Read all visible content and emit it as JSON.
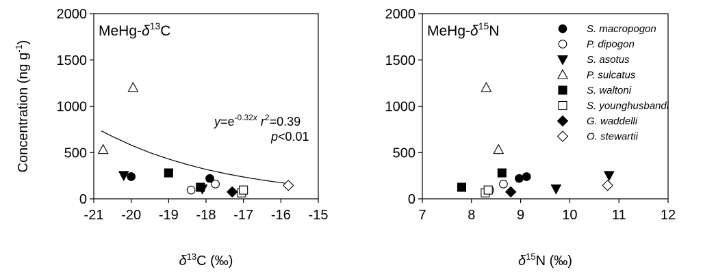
{
  "chart_data": [
    {
      "type": "scatter",
      "panel_label": {
        "prefix": "MeHg-",
        "delta": "δ",
        "sup": "13",
        "element": "C"
      },
      "xlabel": {
        "delta": "δ",
        "sup": "13",
        "element": "C",
        "unit": " (‰)"
      },
      "ylabel": {
        "main": "Concentration (ng g",
        "sup": "-1",
        "close": ")"
      },
      "xlim": [
        -21,
        -15
      ],
      "ylim": [
        0,
        2000
      ],
      "xticks": [
        "-21",
        "-20",
        "-19",
        "-18",
        "-17",
        "-16",
        "-15"
      ],
      "yticks": [
        "0",
        "500",
        "1000",
        "1500",
        "2000"
      ],
      "series": [
        {
          "name": "S.  macropogon",
          "marker": "circle-filled",
          "points": [
            {
              "x": -20.0,
              "y": 240
            },
            {
              "x": -17.9,
              "y": 220
            }
          ]
        },
        {
          "name": "P. dipogon",
          "marker": "circle-open",
          "points": [
            {
              "x": -18.4,
              "y": 95
            },
            {
              "x": -17.75,
              "y": 160
            }
          ]
        },
        {
          "name": "S. asotus",
          "marker": "triangle-down-filled",
          "points": [
            {
              "x": -20.2,
              "y": 255
            },
            {
              "x": -18.1,
              "y": 110
            }
          ]
        },
        {
          "name": "P. sulcatus",
          "marker": "triangle-up-open",
          "points": [
            {
              "x": -20.75,
              "y": 530
            },
            {
              "x": -19.95,
              "y": 1200
            }
          ]
        },
        {
          "name": "S. waltoni",
          "marker": "square-filled",
          "points": [
            {
              "x": -19.0,
              "y": 280
            },
            {
              "x": -18.15,
              "y": 125
            }
          ]
        },
        {
          "name": "S. younghusbandi",
          "marker": "square-open",
          "points": [
            {
              "x": -17.05,
              "y": 65
            },
            {
              "x": -17.0,
              "y": 95
            }
          ]
        },
        {
          "name": "G. waddelli",
          "marker": "diamond-filled",
          "points": [
            {
              "x": -17.3,
              "y": 75
            }
          ]
        },
        {
          "name": "O. stewartii",
          "marker": "diamond-open",
          "points": [
            {
              "x": -15.8,
              "y": 145
            }
          ]
        }
      ],
      "fit_curve": {
        "x": [
          -20.8,
          -20.5,
          -20.0,
          -19.5,
          -19.0,
          -18.5,
          -18.0,
          -17.5,
          -17.0,
          -16.5,
          -16.0,
          -15.8
        ],
        "y": [
          735,
          673,
          580,
          499,
          430,
          370,
          318,
          274,
          236,
          203,
          175,
          165
        ]
      },
      "annotation": {
        "y_var": "y",
        "eq": "=e",
        "exp_pre": "-0.32",
        "exp_var": "x",
        "r": "r",
        "r_sup": "2",
        "r_val": "=0.39",
        "p": "p",
        "p_val": "<0.01"
      }
    },
    {
      "type": "scatter",
      "panel_label": {
        "prefix": "MeHg-",
        "delta": "δ",
        "sup": "15",
        "element": "N"
      },
      "xlabel": {
        "delta": "δ",
        "sup": "15",
        "element": "N",
        "unit": " (‰)"
      },
      "xlim": [
        7,
        12
      ],
      "ylim": [
        0,
        2000
      ],
      "xticks": [
        "7",
        "8",
        "9",
        "10",
        "11",
        "12"
      ],
      "yticks": [
        "0",
        "500",
        "1000",
        "1500",
        "2000"
      ],
      "series": [
        {
          "name": "S.  macropogon",
          "marker": "circle-filled",
          "points": [
            {
              "x": 8.97,
              "y": 220
            },
            {
              "x": 9.12,
              "y": 240
            }
          ]
        },
        {
          "name": "P. dipogon",
          "marker": "circle-open",
          "points": [
            {
              "x": 8.37,
              "y": 95
            },
            {
              "x": 8.65,
              "y": 160
            }
          ]
        },
        {
          "name": "S. asotus",
          "marker": "triangle-down-filled",
          "points": [
            {
              "x": 9.72,
              "y": 110
            },
            {
              "x": 10.8,
              "y": 255
            }
          ]
        },
        {
          "name": "P. sulcatus",
          "marker": "triangle-up-open",
          "points": [
            {
              "x": 8.3,
              "y": 1200
            },
            {
              "x": 8.55,
              "y": 530
            }
          ]
        },
        {
          "name": "S. waltoni",
          "marker": "square-filled",
          "points": [
            {
              "x": 7.8,
              "y": 125
            },
            {
              "x": 8.62,
              "y": 280
            }
          ]
        },
        {
          "name": "S. younghusbandi",
          "marker": "square-open",
          "points": [
            {
              "x": 8.28,
              "y": 65
            },
            {
              "x": 8.34,
              "y": 95
            }
          ]
        },
        {
          "name": "G. waddelli",
          "marker": "diamond-filled",
          "points": [
            {
              "x": 8.8,
              "y": 75
            }
          ]
        },
        {
          "name": "O. stewartii",
          "marker": "diamond-open",
          "points": [
            {
              "x": 10.77,
              "y": 145
            }
          ]
        }
      ],
      "legend": {
        "position": "top-right"
      }
    }
  ]
}
